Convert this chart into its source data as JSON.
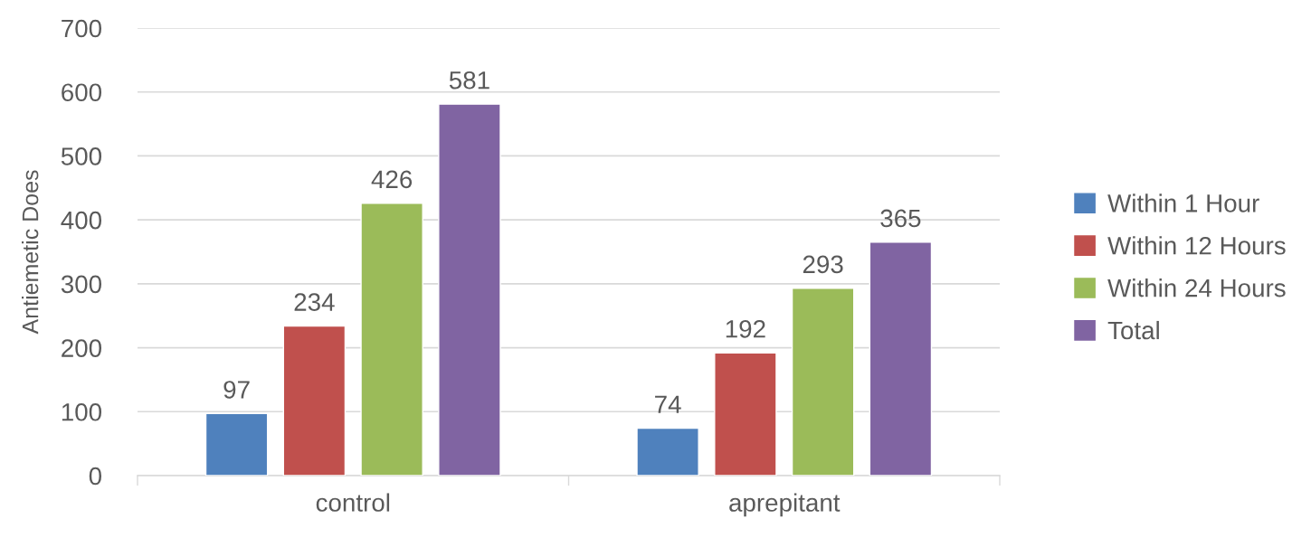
{
  "chart_data": {
    "type": "bar",
    "ylabel": "Antiemetic Does",
    "categories": [
      "control",
      "aprepitant"
    ],
    "series": [
      {
        "name": "Within 1 Hour",
        "color": "#4f81bd",
        "values": [
          97,
          74
        ]
      },
      {
        "name": "Within 12 Hours",
        "color": "#c0504d",
        "values": [
          234,
          192
        ]
      },
      {
        "name": "Within 24 Hours",
        "color": "#9bbb59",
        "values": [
          426,
          293
        ]
      },
      {
        "name": "Total",
        "color": "#8064a2",
        "values": [
          581,
          365
        ]
      }
    ],
    "ylim": [
      0,
      700
    ],
    "yticks": [
      0,
      100,
      200,
      300,
      400,
      500,
      600,
      700
    ],
    "grid": "y",
    "legend": "right",
    "data_labels": true
  }
}
